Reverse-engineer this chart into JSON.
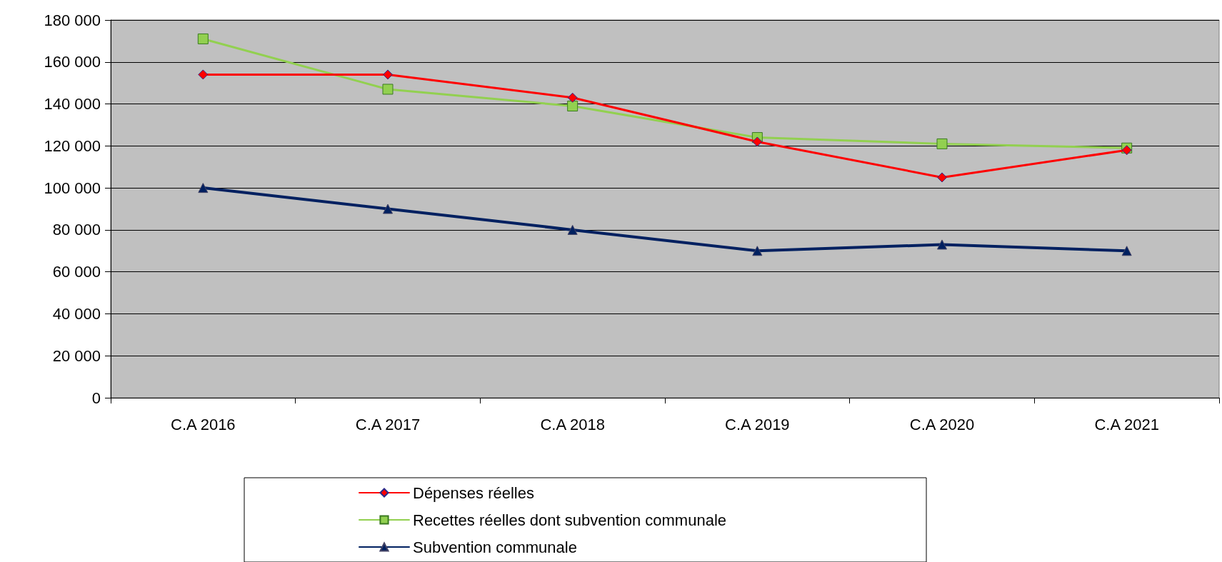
{
  "chart_data": {
    "type": "line",
    "categories": [
      "C.A 2016",
      "C.A 2017",
      "C.A 2018",
      "C.A 2019",
      "C.A 2020",
      "C.A 2021"
    ],
    "series": [
      {
        "name": "Dépenses réelles",
        "color": "#ff0000",
        "marker": "diamond",
        "values": [
          154000,
          154000,
          143000,
          122000,
          105000,
          118000
        ]
      },
      {
        "name": "Recettes réelles dont subvention communale",
        "color": "#92d050",
        "marker": "square",
        "values": [
          171000,
          147000,
          139000,
          124000,
          121000,
          119000
        ]
      },
      {
        "name": "Subvention communale",
        "color": "#002060",
        "marker": "triangle",
        "values": [
          100000,
          90000,
          80000,
          70000,
          73000,
          70000
        ]
      }
    ],
    "ylim": [
      0,
      180000
    ],
    "yticks": [
      0,
      {
        "value": 20000,
        "label": "20 000"
      },
      {
        "value": 40000,
        "label": "40 000"
      },
      {
        "value": 60000,
        "label": "60 000"
      },
      {
        "value": 80000,
        "label": "80 000"
      },
      {
        "value": 100000,
        "label": "100 000"
      },
      {
        "value": 120000,
        "label": "120 000"
      },
      {
        "value": 140000,
        "label": "140 000"
      },
      {
        "value": 160000,
        "label": "160 000"
      },
      {
        "value": 180000,
        "label": "180 000"
      }
    ],
    "grid": "y",
    "legend": "bottom"
  }
}
